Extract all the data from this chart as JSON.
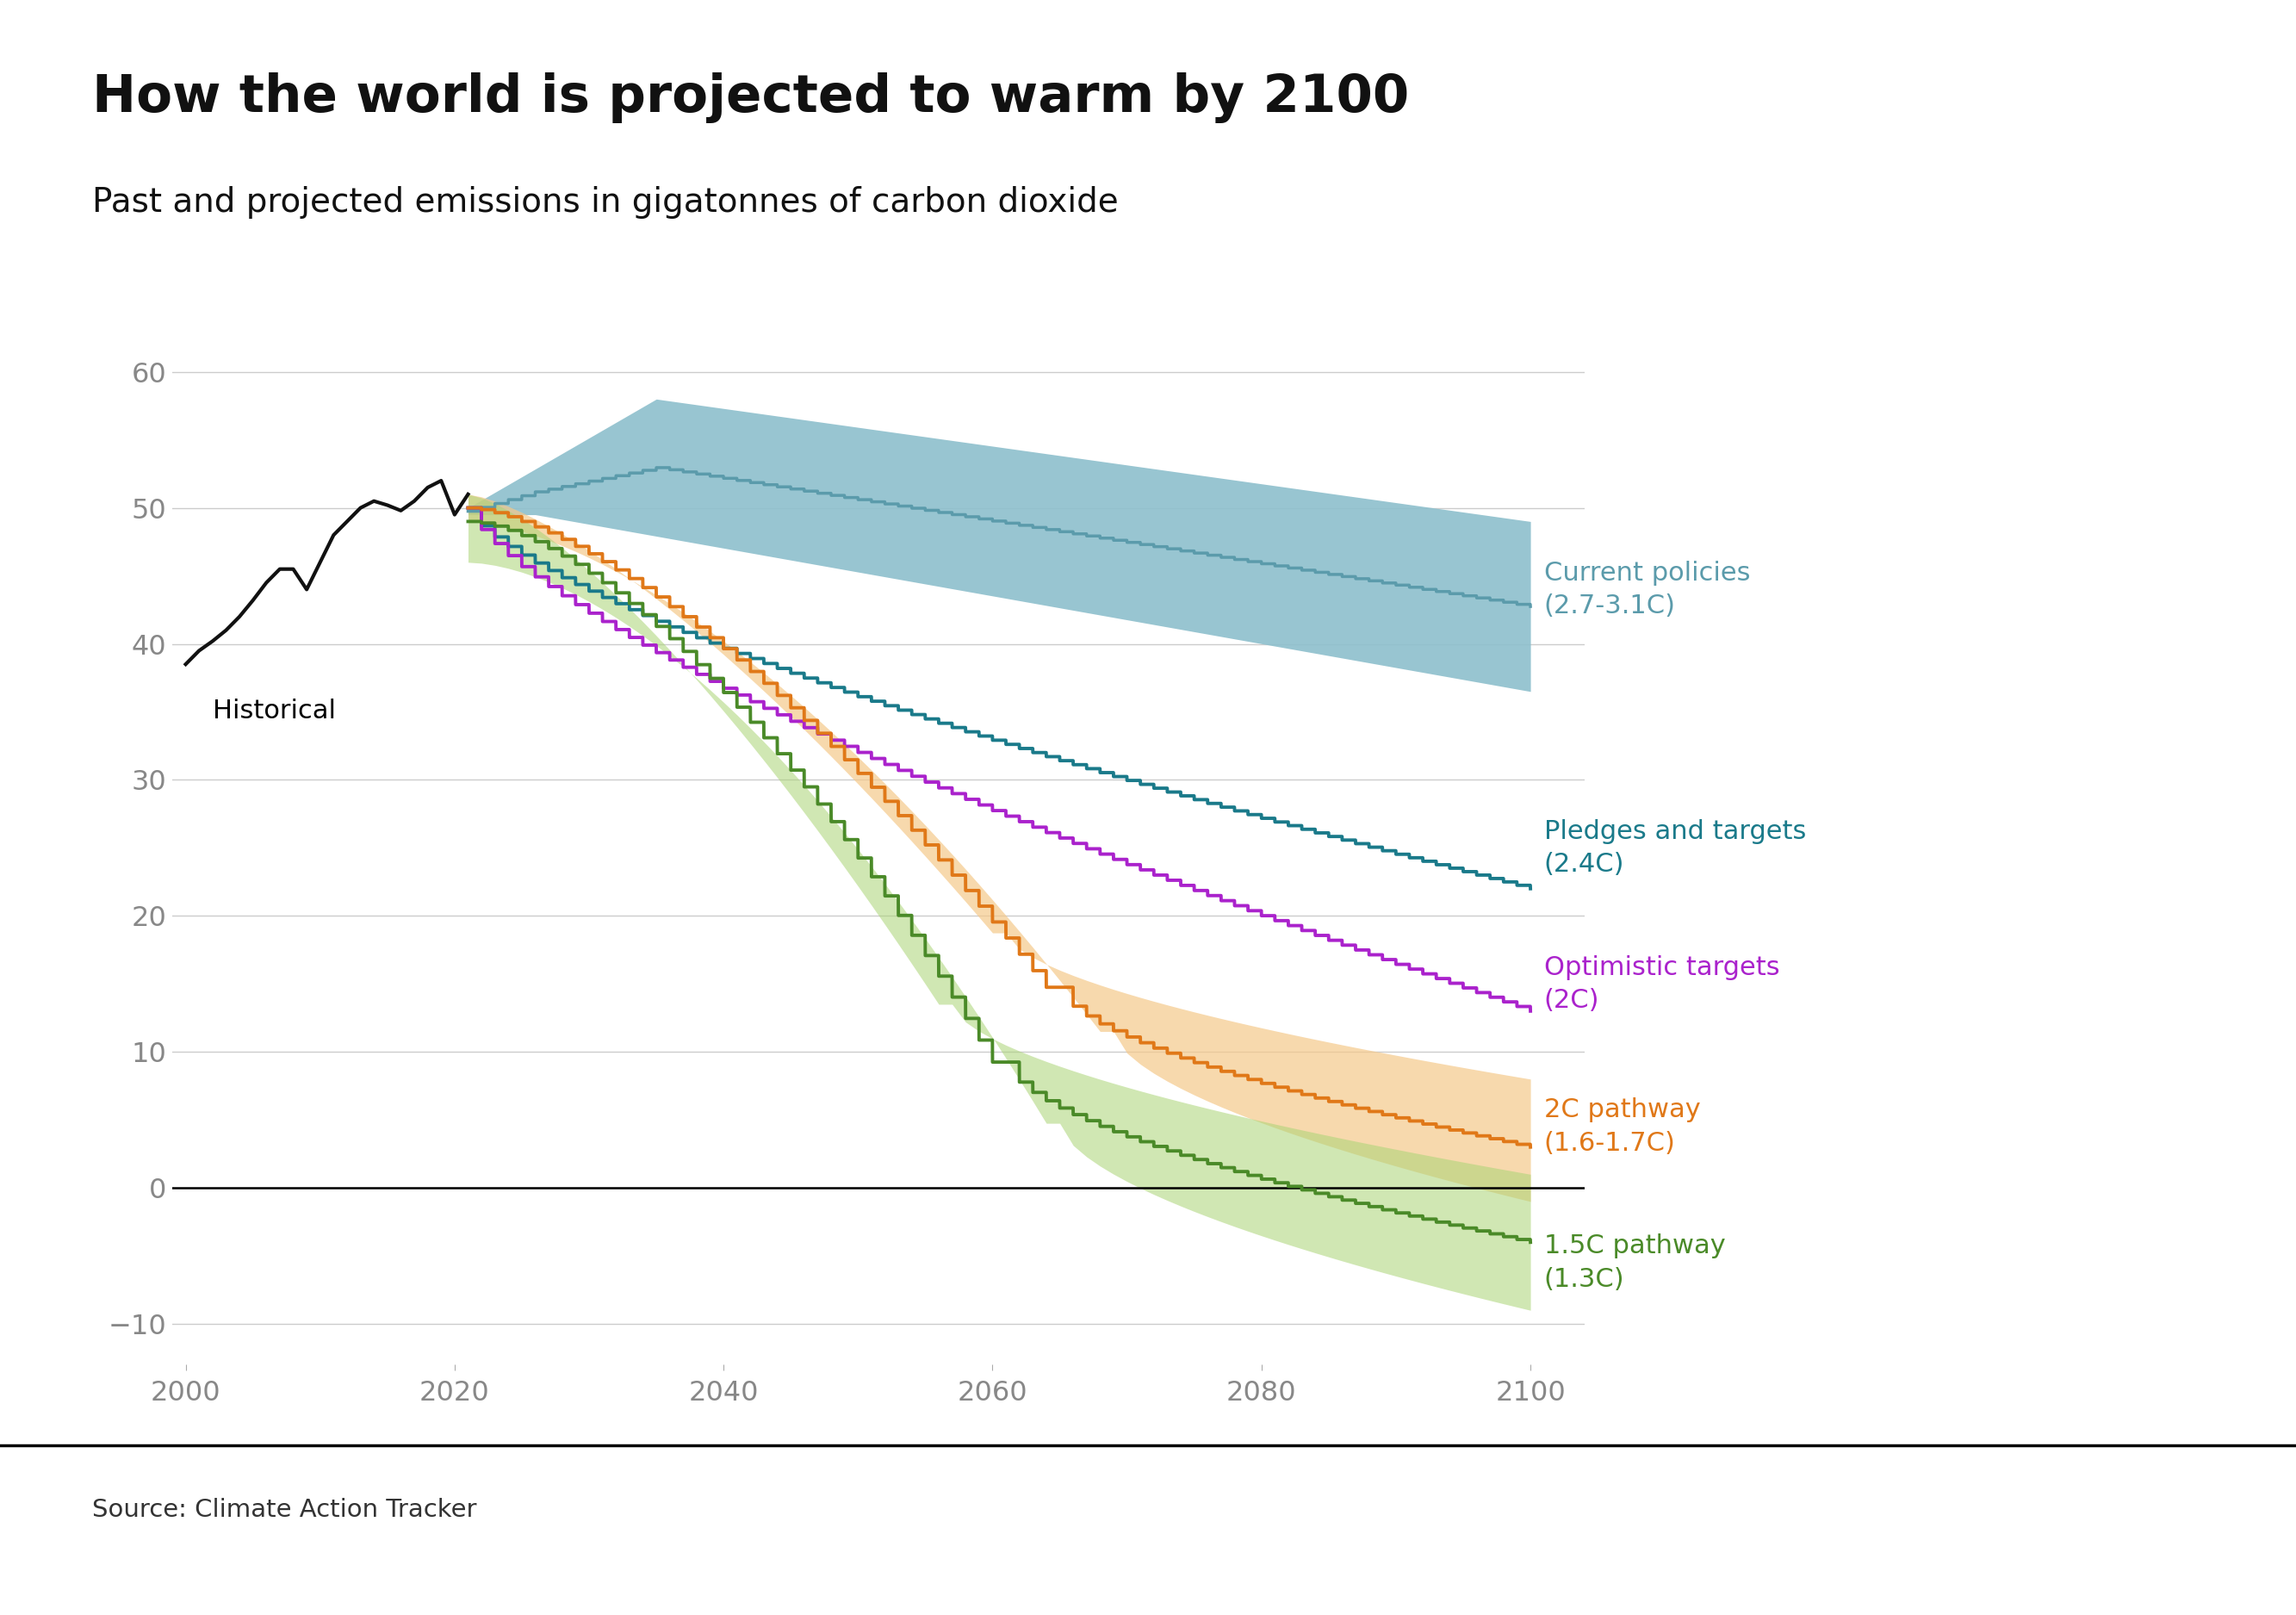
{
  "title": "How the world is projected to warm by 2100",
  "subtitle": "Past and projected emissions in gigatonnes of carbon dioxide",
  "source": "Source: Climate Action Tracker",
  "xlim": [
    1999,
    2104
  ],
  "ylim": [
    -13,
    63
  ],
  "yticks": [
    -10,
    0,
    10,
    20,
    30,
    40,
    50,
    60
  ],
  "xticks": [
    2000,
    2020,
    2040,
    2060,
    2080,
    2100
  ],
  "bg_color": "#ffffff",
  "grid_color": "#cccccc",
  "historical_color": "#111111",
  "current_policies_color": "#5b9bab",
  "current_policies_fill": "#8dbfcc",
  "pledges_color": "#1a7a8a",
  "optimistic_color": "#aa22cc",
  "pathway_2c_color": "#e07818",
  "pathway_2c_fill": "#f5c98a",
  "pathway_15c_color": "#4a8a28",
  "pathway_15c_fill": "#aad475",
  "label_current": "Current policies\n(2.7-3.1C)",
  "label_pledges": "Pledges and targets\n(2.4C)",
  "label_optimistic": "Optimistic targets\n(2C)",
  "label_2c": "2C pathway\n(1.6-1.7C)",
  "label_15c": "1.5C pathway\n(1.3C)",
  "label_historical": "Historical"
}
